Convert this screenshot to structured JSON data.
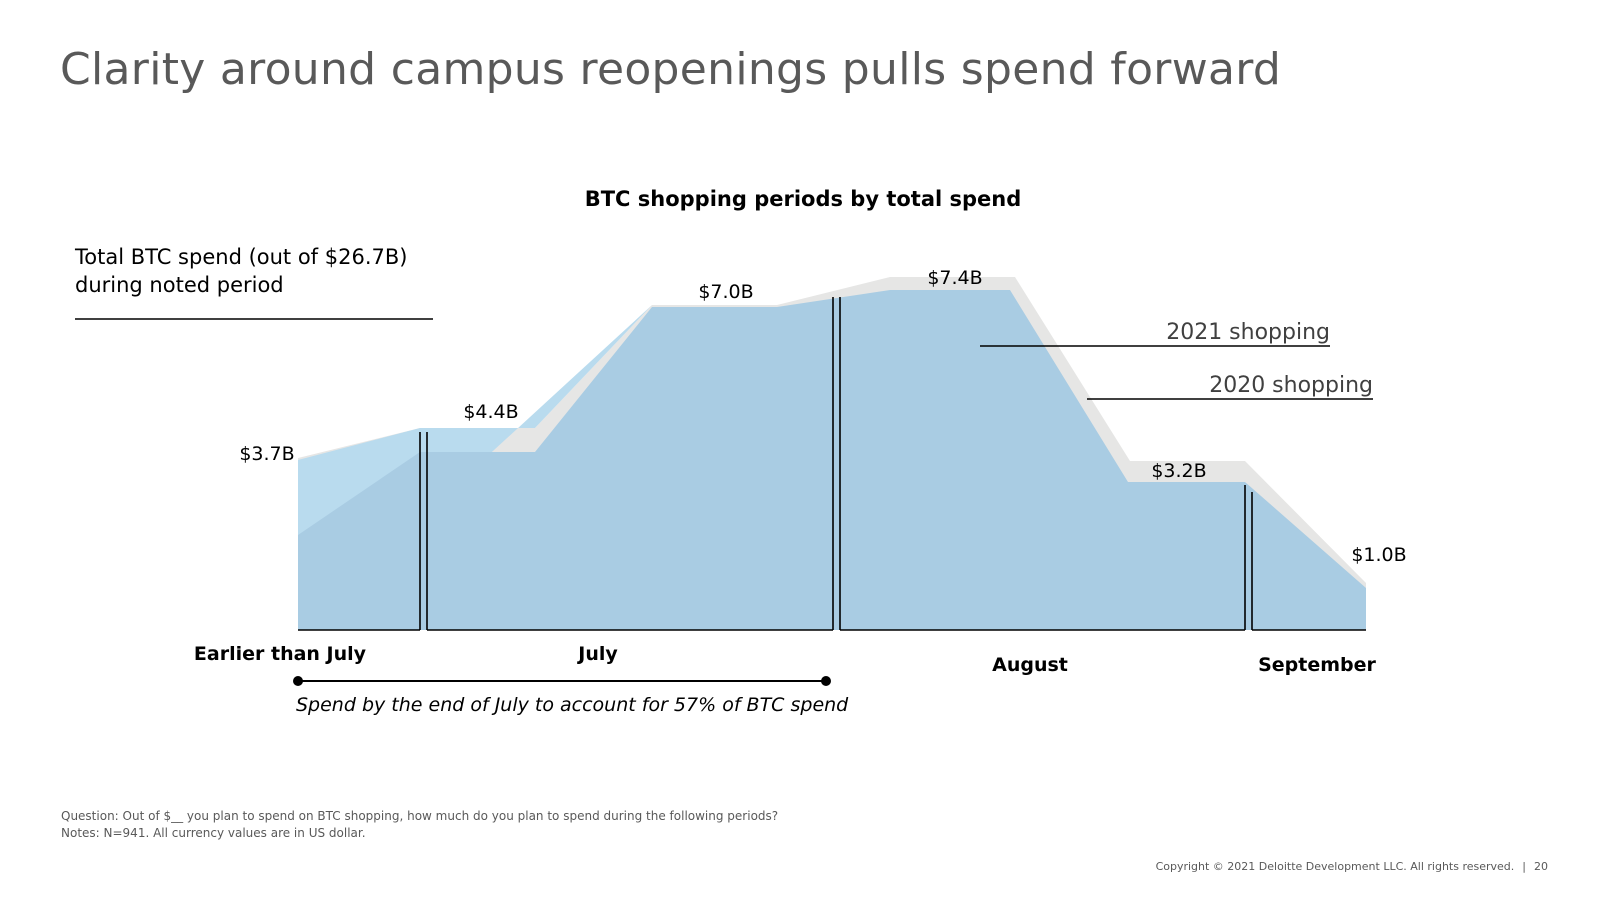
{
  "page": {
    "title": "Clarity around campus reopenings pulls spend forward"
  },
  "chart_data": {
    "type": "area",
    "title": "BTC shopping periods by total spend",
    "total_label": "Total BTC spend (out of $26.7B) during noted period",
    "periods": [
      {
        "name": "Earlier than July",
        "value_2021": 3.7,
        "label": "$3.7B"
      },
      {
        "name": "July (early)",
        "value_2021": 4.4,
        "label": "$4.4B"
      },
      {
        "name": "July (late)",
        "value_2021": 7.0,
        "label": "$7.0B"
      },
      {
        "name": "August (early)",
        "value_2021": 7.4,
        "label": "$7.4B"
      },
      {
        "name": "August (late)",
        "value_2021": 3.2,
        "label": "$3.2B"
      },
      {
        "name": "September",
        "value_2021": 1.0,
        "label": "$1.0B"
      }
    ],
    "month_labels": [
      "Earlier than July",
      "July",
      "August",
      "September"
    ],
    "series": [
      {
        "name": "2021 shopping",
        "color": "#a9cce3"
      },
      {
        "name": "2020 shopping",
        "color": "#e6e6e5"
      }
    ],
    "colors": {
      "area_2021": "#a9cce3",
      "area_2021_light": "#b9dbee",
      "area_2020": "#e6e6e5",
      "ink": "#000000"
    },
    "bracket_note": "Spend by the end of July to account for 57% of BTC spend"
  },
  "footer": {
    "question": "Question: Out of $__ you plan to spend on BTC shopping, how much do you plan to spend during the following periods?",
    "notes": "Notes: N=941. All currency values are in US dollar.",
    "copyright": "Copyright © 2021 Deloitte Development LLC. All rights reserved.",
    "separator": "|",
    "page_number": "20"
  }
}
